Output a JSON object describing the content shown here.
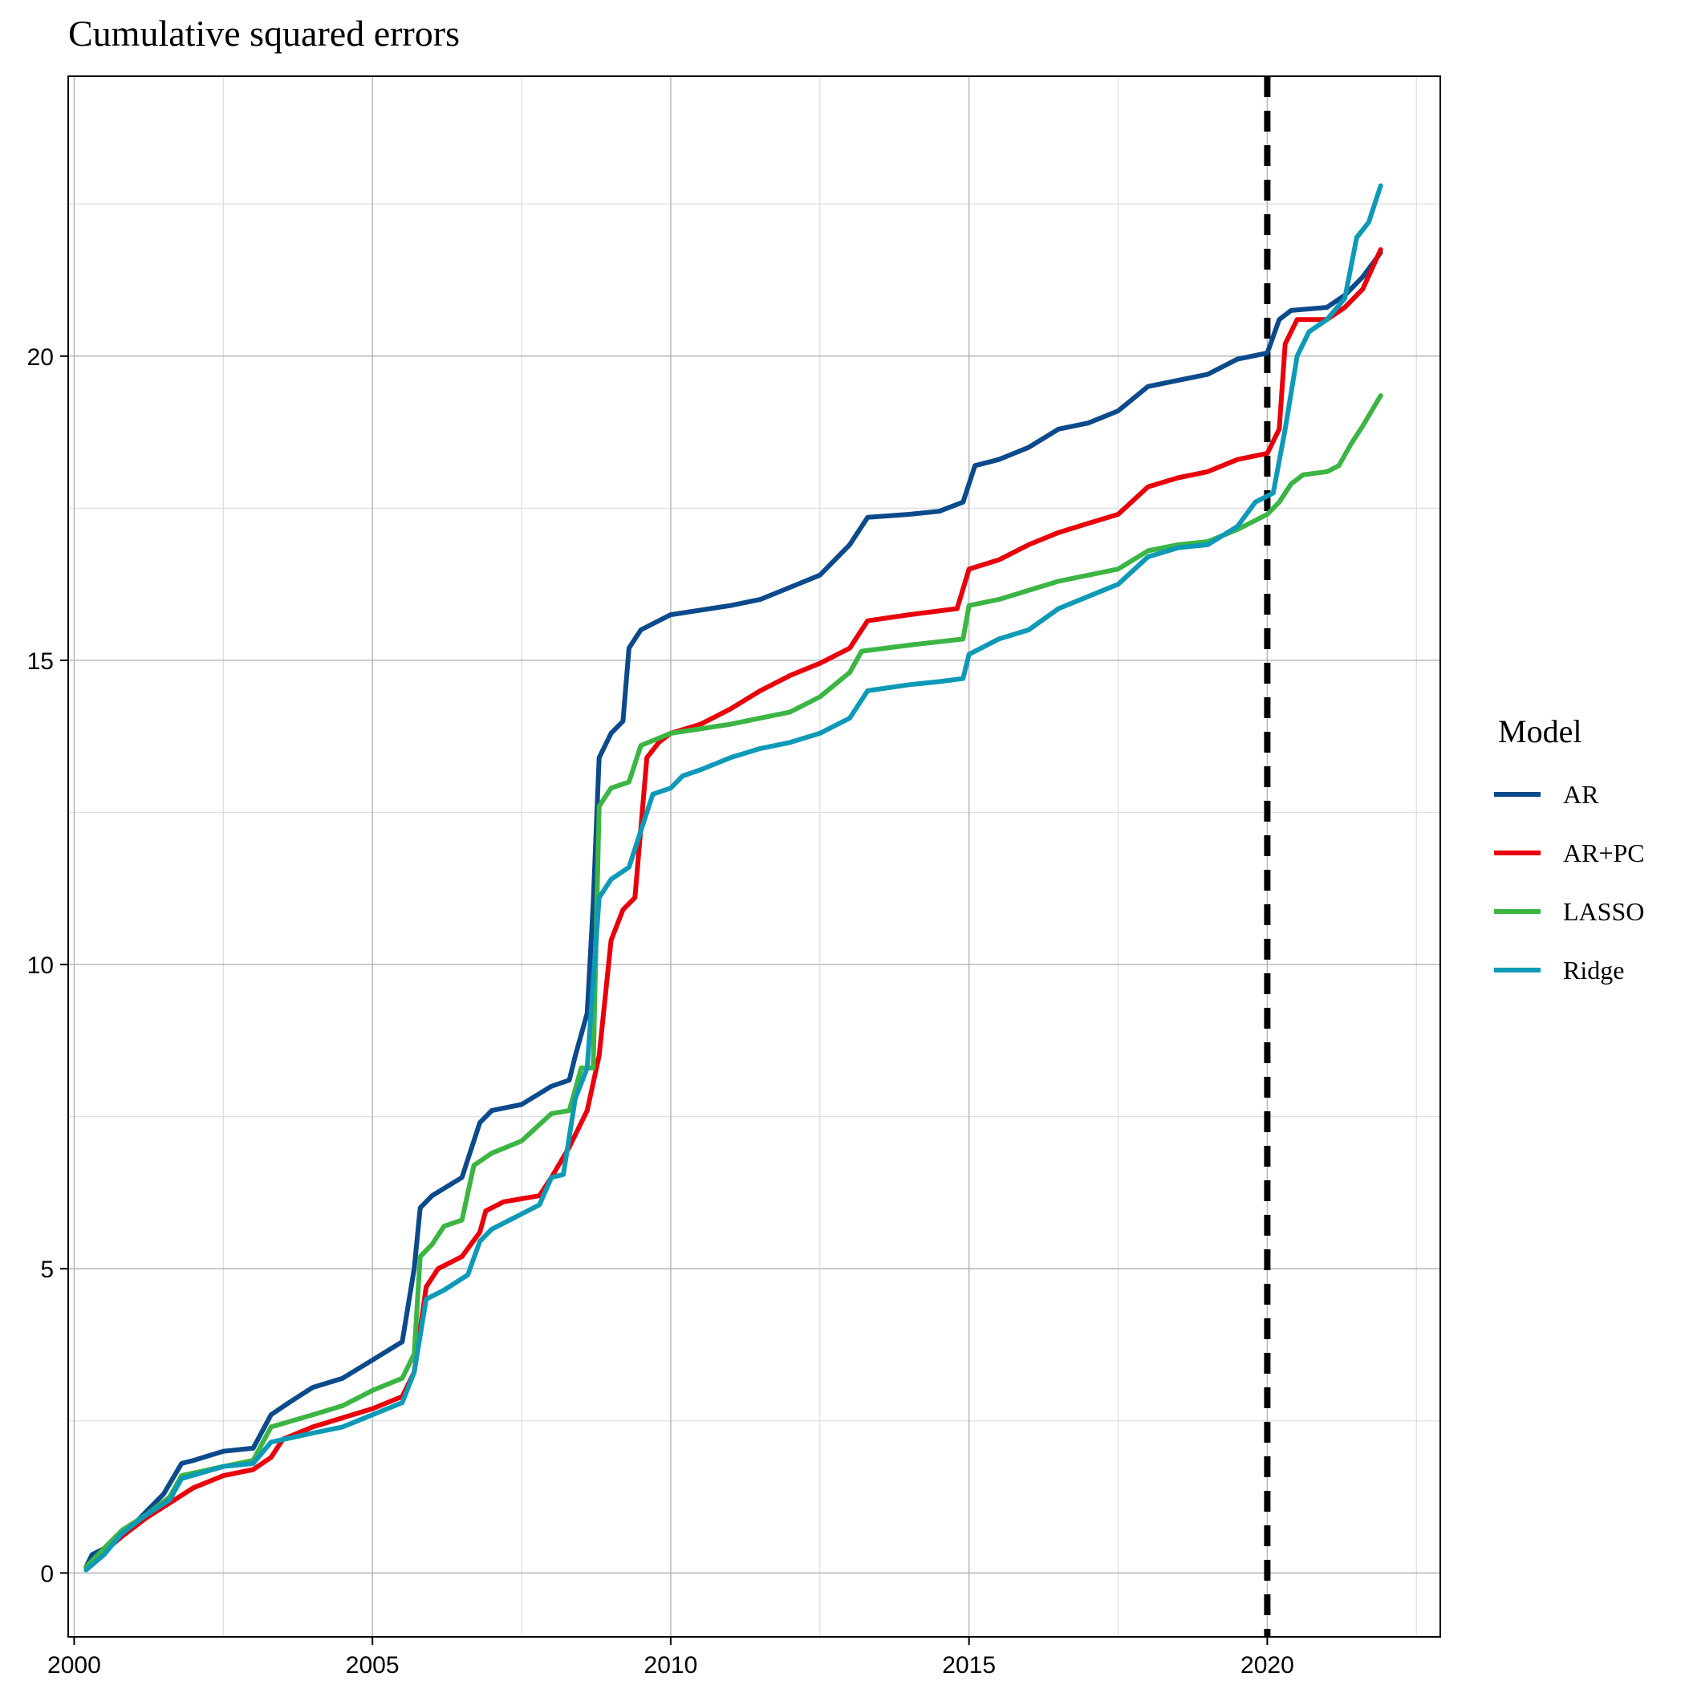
{
  "chart_data": {
    "type": "line",
    "title": "Cumulative squared errors",
    "xlabel": "",
    "ylabel": "",
    "xlim": [
      1999.9,
      2022.9
    ],
    "ylim": [
      -1.05,
      24.6
    ],
    "x_ticks": [
      2000,
      2005,
      2010,
      2015,
      2020
    ],
    "x_tick_labels": [
      "2000",
      "2005",
      "2010",
      "2015",
      "2020"
    ],
    "y_ticks": [
      0,
      5,
      10,
      15,
      20
    ],
    "y_tick_labels": [
      "0",
      "5",
      "10",
      "15",
      "20"
    ],
    "grid": true,
    "reference_line": {
      "x": 2020,
      "style": "dashed",
      "color": "#000000"
    },
    "legend": {
      "title": "Model",
      "position": "right"
    },
    "series": [
      {
        "name": "AR",
        "color": "#0b4a8b",
        "points": [
          [
            2000.2,
            0.1
          ],
          [
            2000.3,
            0.3
          ],
          [
            2000.5,
            0.4
          ],
          [
            2000.7,
            0.6
          ],
          [
            2001.0,
            0.8
          ],
          [
            2001.3,
            1.1
          ],
          [
            2001.5,
            1.3
          ],
          [
            2001.8,
            1.8
          ],
          [
            2002.0,
            1.85
          ],
          [
            2002.5,
            2.0
          ],
          [
            2003.0,
            2.05
          ],
          [
            2003.3,
            2.6
          ],
          [
            2003.6,
            2.8
          ],
          [
            2004.0,
            3.05
          ],
          [
            2004.5,
            3.2
          ],
          [
            2005.0,
            3.5
          ],
          [
            2005.5,
            3.8
          ],
          [
            2005.7,
            5.0
          ],
          [
            2005.8,
            6.0
          ],
          [
            2006.0,
            6.2
          ],
          [
            2006.5,
            6.5
          ],
          [
            2006.8,
            7.4
          ],
          [
            2007.0,
            7.6
          ],
          [
            2007.5,
            7.7
          ],
          [
            2008.0,
            8.0
          ],
          [
            2008.3,
            8.1
          ],
          [
            2008.4,
            8.5
          ],
          [
            2008.6,
            9.2
          ],
          [
            2008.7,
            11.0
          ],
          [
            2008.8,
            13.4
          ],
          [
            2009.0,
            13.8
          ],
          [
            2009.2,
            14.0
          ],
          [
            2009.3,
            15.2
          ],
          [
            2009.5,
            15.5
          ],
          [
            2010.0,
            15.75
          ],
          [
            2011.0,
            15.9
          ],
          [
            2011.5,
            16.0
          ],
          [
            2012.0,
            16.2
          ],
          [
            2012.5,
            16.4
          ],
          [
            2013.0,
            16.9
          ],
          [
            2013.3,
            17.35
          ],
          [
            2014.0,
            17.4
          ],
          [
            2014.5,
            17.45
          ],
          [
            2014.9,
            17.6
          ],
          [
            2015.1,
            18.2
          ],
          [
            2015.5,
            18.3
          ],
          [
            2016.0,
            18.5
          ],
          [
            2016.5,
            18.8
          ],
          [
            2017.0,
            18.9
          ],
          [
            2017.5,
            19.1
          ],
          [
            2018.0,
            19.5
          ],
          [
            2018.5,
            19.6
          ],
          [
            2019.0,
            19.7
          ],
          [
            2019.5,
            19.95
          ],
          [
            2020.0,
            20.05
          ],
          [
            2020.2,
            20.6
          ],
          [
            2020.4,
            20.75
          ],
          [
            2021.0,
            20.8
          ],
          [
            2021.3,
            21.0
          ],
          [
            2021.6,
            21.3
          ],
          [
            2021.9,
            21.7
          ]
        ]
      },
      {
        "name": "AR+PC",
        "color": "#e8000b",
        "points": [
          [
            2000.2,
            0.1
          ],
          [
            2000.5,
            0.35
          ],
          [
            2000.8,
            0.6
          ],
          [
            2001.2,
            0.9
          ],
          [
            2001.6,
            1.15
          ],
          [
            2002.0,
            1.4
          ],
          [
            2002.5,
            1.6
          ],
          [
            2003.0,
            1.7
          ],
          [
            2003.3,
            1.9
          ],
          [
            2003.5,
            2.2
          ],
          [
            2004.0,
            2.4
          ],
          [
            2004.5,
            2.55
          ],
          [
            2005.0,
            2.7
          ],
          [
            2005.5,
            2.9
          ],
          [
            2005.7,
            3.3
          ],
          [
            2005.9,
            4.7
          ],
          [
            2006.1,
            5.0
          ],
          [
            2006.5,
            5.2
          ],
          [
            2006.8,
            5.6
          ],
          [
            2006.9,
            5.95
          ],
          [
            2007.2,
            6.1
          ],
          [
            2007.8,
            6.2
          ],
          [
            2008.0,
            6.5
          ],
          [
            2008.3,
            7.0
          ],
          [
            2008.6,
            7.6
          ],
          [
            2008.8,
            8.5
          ],
          [
            2009.0,
            10.4
          ],
          [
            2009.2,
            10.9
          ],
          [
            2009.4,
            11.1
          ],
          [
            2009.6,
            13.4
          ],
          [
            2009.8,
            13.65
          ],
          [
            2010.0,
            13.8
          ],
          [
            2010.5,
            13.95
          ],
          [
            2011.0,
            14.2
          ],
          [
            2011.5,
            14.5
          ],
          [
            2012.0,
            14.75
          ],
          [
            2012.5,
            14.95
          ],
          [
            2013.0,
            15.2
          ],
          [
            2013.3,
            15.65
          ],
          [
            2014.0,
            15.75
          ],
          [
            2014.8,
            15.85
          ],
          [
            2015.0,
            16.5
          ],
          [
            2015.5,
            16.65
          ],
          [
            2016.0,
            16.9
          ],
          [
            2016.5,
            17.1
          ],
          [
            2017.0,
            17.25
          ],
          [
            2017.5,
            17.4
          ],
          [
            2018.0,
            17.85
          ],
          [
            2018.5,
            18.0
          ],
          [
            2019.0,
            18.1
          ],
          [
            2019.5,
            18.3
          ],
          [
            2020.0,
            18.4
          ],
          [
            2020.2,
            18.8
          ],
          [
            2020.3,
            20.2
          ],
          [
            2020.5,
            20.6
          ],
          [
            2021.0,
            20.6
          ],
          [
            2021.3,
            20.8
          ],
          [
            2021.6,
            21.1
          ],
          [
            2021.9,
            21.75
          ]
        ]
      },
      {
        "name": "LASSO",
        "color": "#3cb544",
        "points": [
          [
            2000.2,
            0.1
          ],
          [
            2000.5,
            0.4
          ],
          [
            2000.8,
            0.7
          ],
          [
            2001.2,
            0.95
          ],
          [
            2001.6,
            1.25
          ],
          [
            2001.8,
            1.6
          ],
          [
            2002.5,
            1.75
          ],
          [
            2003.0,
            1.85
          ],
          [
            2003.3,
            2.4
          ],
          [
            2004.0,
            2.6
          ],
          [
            2004.5,
            2.75
          ],
          [
            2005.0,
            3.0
          ],
          [
            2005.5,
            3.2
          ],
          [
            2005.7,
            3.6
          ],
          [
            2005.8,
            5.2
          ],
          [
            2006.0,
            5.4
          ],
          [
            2006.2,
            5.7
          ],
          [
            2006.5,
            5.8
          ],
          [
            2006.7,
            6.7
          ],
          [
            2007.0,
            6.9
          ],
          [
            2007.5,
            7.1
          ],
          [
            2008.0,
            7.55
          ],
          [
            2008.3,
            7.6
          ],
          [
            2008.5,
            8.3
          ],
          [
            2008.7,
            8.3
          ],
          [
            2008.8,
            12.6
          ],
          [
            2009.0,
            12.9
          ],
          [
            2009.3,
            13.0
          ],
          [
            2009.5,
            13.6
          ],
          [
            2010.0,
            13.8
          ],
          [
            2011.0,
            13.95
          ],
          [
            2011.5,
            14.05
          ],
          [
            2012.0,
            14.15
          ],
          [
            2012.5,
            14.4
          ],
          [
            2013.0,
            14.8
          ],
          [
            2013.2,
            15.15
          ],
          [
            2014.0,
            15.25
          ],
          [
            2014.9,
            15.35
          ],
          [
            2015.0,
            15.9
          ],
          [
            2015.5,
            16.0
          ],
          [
            2016.0,
            16.15
          ],
          [
            2016.5,
            16.3
          ],
          [
            2017.0,
            16.4
          ],
          [
            2017.5,
            16.5
          ],
          [
            2018.0,
            16.8
          ],
          [
            2018.5,
            16.9
          ],
          [
            2019.0,
            16.95
          ],
          [
            2019.5,
            17.15
          ],
          [
            2020.0,
            17.4
          ],
          [
            2020.2,
            17.6
          ],
          [
            2020.4,
            17.9
          ],
          [
            2020.6,
            18.05
          ],
          [
            2021.0,
            18.1
          ],
          [
            2021.2,
            18.2
          ],
          [
            2021.4,
            18.55
          ],
          [
            2021.6,
            18.85
          ],
          [
            2021.9,
            19.35
          ]
        ]
      },
      {
        "name": "Ridge",
        "color": "#0e9ab7",
        "points": [
          [
            2000.2,
            0.05
          ],
          [
            2000.5,
            0.3
          ],
          [
            2000.8,
            0.65
          ],
          [
            2001.2,
            0.95
          ],
          [
            2001.6,
            1.2
          ],
          [
            2001.8,
            1.55
          ],
          [
            2002.5,
            1.75
          ],
          [
            2003.0,
            1.8
          ],
          [
            2003.3,
            2.15
          ],
          [
            2004.0,
            2.3
          ],
          [
            2004.5,
            2.4
          ],
          [
            2005.0,
            2.6
          ],
          [
            2005.5,
            2.8
          ],
          [
            2005.7,
            3.3
          ],
          [
            2005.9,
            4.5
          ],
          [
            2006.2,
            4.65
          ],
          [
            2006.6,
            4.9
          ],
          [
            2006.8,
            5.45
          ],
          [
            2007.0,
            5.65
          ],
          [
            2007.5,
            5.9
          ],
          [
            2007.8,
            6.05
          ],
          [
            2008.0,
            6.5
          ],
          [
            2008.2,
            6.55
          ],
          [
            2008.4,
            7.8
          ],
          [
            2008.6,
            8.3
          ],
          [
            2008.8,
            11.1
          ],
          [
            2009.0,
            11.4
          ],
          [
            2009.3,
            11.6
          ],
          [
            2009.5,
            12.2
          ],
          [
            2009.7,
            12.8
          ],
          [
            2010.0,
            12.9
          ],
          [
            2010.2,
            13.1
          ],
          [
            2010.5,
            13.2
          ],
          [
            2011.0,
            13.4
          ],
          [
            2011.5,
            13.55
          ],
          [
            2012.0,
            13.65
          ],
          [
            2012.5,
            13.8
          ],
          [
            2013.0,
            14.05
          ],
          [
            2013.3,
            14.5
          ],
          [
            2014.0,
            14.6
          ],
          [
            2014.5,
            14.65
          ],
          [
            2014.9,
            14.7
          ],
          [
            2015.0,
            15.1
          ],
          [
            2015.5,
            15.35
          ],
          [
            2016.0,
            15.5
          ],
          [
            2016.5,
            15.85
          ],
          [
            2017.0,
            16.05
          ],
          [
            2017.5,
            16.25
          ],
          [
            2018.0,
            16.7
          ],
          [
            2018.5,
            16.85
          ],
          [
            2019.0,
            16.9
          ],
          [
            2019.5,
            17.2
          ],
          [
            2019.8,
            17.6
          ],
          [
            2020.1,
            17.75
          ],
          [
            2020.3,
            18.8
          ],
          [
            2020.5,
            20.0
          ],
          [
            2020.7,
            20.4
          ],
          [
            2021.0,
            20.6
          ],
          [
            2021.3,
            20.95
          ],
          [
            2021.5,
            21.95
          ],
          [
            2021.7,
            22.2
          ],
          [
            2021.9,
            22.8
          ]
        ]
      }
    ]
  }
}
